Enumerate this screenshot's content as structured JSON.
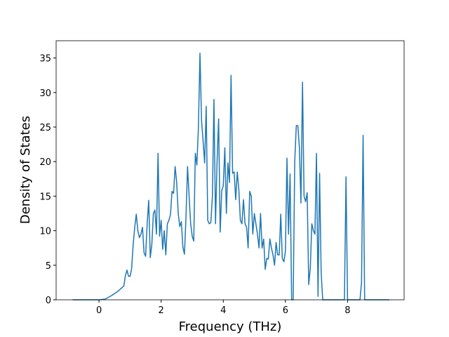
{
  "chart_data": {
    "type": "line",
    "xlabel": "Frequency (THz)",
    "ylabel": "Density of States",
    "xlim": [
      -1.38,
      9.82
    ],
    "ylim": [
      0,
      37.5
    ],
    "xticks": [
      0,
      2,
      4,
      6,
      8
    ],
    "yticks": [
      0,
      5,
      10,
      15,
      20,
      25,
      30,
      35
    ],
    "x": [
      -0.85,
      0,
      0.2,
      0.4,
      0.6,
      0.8,
      0.85,
      0.9,
      0.95,
      1.0,
      1.05,
      1.1,
      1.15,
      1.2,
      1.25,
      1.3,
      1.35,
      1.4,
      1.45,
      1.5,
      1.55,
      1.6,
      1.65,
      1.7,
      1.75,
      1.8,
      1.85,
      1.9,
      1.95,
      2.0,
      2.05,
      2.1,
      2.15,
      2.2,
      2.25,
      2.3,
      2.35,
      2.4,
      2.45,
      2.5,
      2.55,
      2.6,
      2.65,
      2.7,
      2.75,
      2.8,
      2.85,
      2.9,
      2.95,
      3.0,
      3.05,
      3.1,
      3.15,
      3.2,
      3.25,
      3.3,
      3.35,
      3.4,
      3.45,
      3.5,
      3.55,
      3.6,
      3.65,
      3.7,
      3.75,
      3.8,
      3.85,
      3.9,
      3.95,
      4.0,
      4.05,
      4.1,
      4.15,
      4.2,
      4.25,
      4.3,
      4.35,
      4.4,
      4.45,
      4.5,
      4.55,
      4.6,
      4.65,
      4.7,
      4.75,
      4.8,
      4.85,
      4.9,
      4.95,
      5.0,
      5.05,
      5.1,
      5.15,
      5.2,
      5.25,
      5.3,
      5.35,
      5.4,
      5.45,
      5.5,
      5.55,
      5.6,
      5.65,
      5.7,
      5.75,
      5.8,
      5.85,
      5.9,
      5.95,
      6.0,
      6.05,
      6.1,
      6.15,
      6.2,
      6.25,
      6.3,
      6.35,
      6.4,
      6.45,
      6.5,
      6.55,
      6.6,
      6.65,
      6.7,
      6.75,
      6.8,
      6.85,
      6.9,
      6.95,
      7.0,
      7.05,
      7.1,
      7.15,
      7.2,
      7.9,
      7.95,
      8.0,
      8.4,
      8.45,
      8.5,
      8.55,
      9.35
    ],
    "series": [
      {
        "color": "#1f77b4",
        "values": [
          0,
          0,
          0.1,
          0.6,
          1.2,
          2.0,
          3.5,
          4.3,
          3.4,
          3.4,
          4.5,
          8,
          10.5,
          12.4,
          10,
          9,
          9.5,
          10.5,
          6.8,
          6.3,
          11,
          14.4,
          6.1,
          8,
          12.5,
          13,
          9.5,
          21.2,
          9.2,
          11.5,
          7.3,
          10,
          6.5,
          11,
          11.5,
          12.3,
          15.7,
          15.4,
          19.3,
          17,
          12.5,
          10.6,
          11.3,
          7.6,
          6.6,
          12,
          19.3,
          15,
          11,
          9.2,
          8.5,
          21.2,
          19.5,
          25,
          35.7,
          26,
          23,
          19.8,
          28,
          11.5,
          11,
          11.2,
          15,
          29,
          11,
          20,
          26.2,
          9.8,
          15.8,
          16.5,
          22,
          12.5,
          19.8,
          17,
          32.5,
          18.3,
          18.5,
          14.5,
          18.5,
          16,
          11.5,
          11,
          14.5,
          11,
          10.5,
          7.5,
          15.7,
          15,
          9.5,
          12.5,
          11,
          9.5,
          7.5,
          12.5,
          7.5,
          8.8,
          4.4,
          6,
          5.9,
          8.8,
          7.5,
          6.5,
          5,
          8.3,
          6.5,
          6.5,
          12.4,
          6,
          5.5,
          7,
          20.5,
          9.5,
          18.2,
          0,
          0,
          20,
          25.2,
          25.2,
          22,
          14,
          31.5,
          15,
          14.2,
          15.5,
          2.2,
          4.5,
          11,
          10,
          9.5,
          21.2,
          0.5,
          18.3,
          4,
          0,
          0,
          17.8,
          0,
          0,
          2.5,
          23.8,
          0,
          0
        ]
      }
    ]
  }
}
